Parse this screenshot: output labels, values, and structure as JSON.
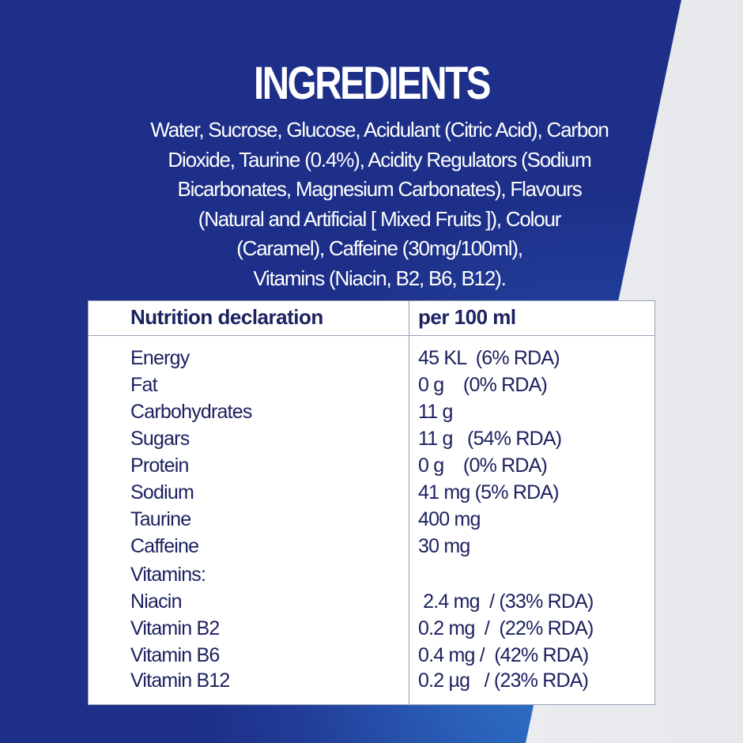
{
  "title": "INGREDIENTS",
  "ingredients_lines": [
    "Water, Sucrose, Glucose, Acidulant (Citric Acid), Carbon",
    "Dioxide, Taurine (0.4%), Acidity Regulators (Sodium",
    "Bicarbonates, Magnesium Carbonates), Flavours",
    "(Natural and Artificial [ Mixed Fruits ]), Colour",
    "(Caramel), Caffeine (30mg/100ml),",
    "Vitamins (Niacin, B2, B6, B12)."
  ],
  "table": {
    "header_name": "Nutrition declaration",
    "header_value": "per 100 ml",
    "rows": [
      {
        "name": "Energy",
        "value": "45 KL  (6% RDA)"
      },
      {
        "name": "Fat",
        "value": "0 g    (0% RDA)"
      },
      {
        "name": "Carbohydrates",
        "value": "11 g"
      },
      {
        "name": "Sugars",
        "value": "11 g   (54% RDA)"
      },
      {
        "name": "Protein",
        "value": "0 g    (0% RDA)"
      },
      {
        "name": "Sodium",
        "value": "41 mg (5% RDA)"
      },
      {
        "name": "Taurine",
        "value": "400 mg"
      },
      {
        "name": "Caffeine",
        "value": "30 mg"
      },
      {
        "name": "Vitamins:",
        "value": ""
      },
      {
        "name": "Niacin",
        "value": " 2.4 mg  / (33% RDA)"
      },
      {
        "name": "Vitamin B2",
        "value": "0.2 mg  /  (22% RDA)"
      },
      {
        "name": "Vitamin B6",
        "value": "0.4 mg /  (42% RDA)"
      },
      {
        "name": "Vitamin B12",
        "value": "0.2 µg   / (23% RDA)"
      }
    ]
  },
  "colors": {
    "blue_dark": "#1d2f88",
    "blue_light": "#2f7fd0",
    "text_navy": "#1c2260"
  }
}
